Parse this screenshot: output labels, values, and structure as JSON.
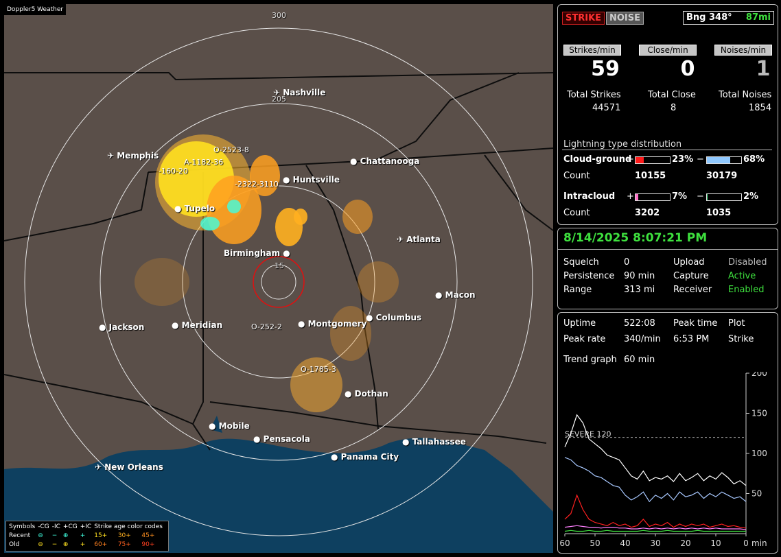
{
  "app": {
    "brand": "Doppler5 Weather"
  },
  "map": {
    "range_labels": [
      "300",
      "205",
      "15"
    ],
    "cities": [
      {
        "name": "Nashville",
        "icon": "airport"
      },
      {
        "name": "Memphis",
        "icon": "airport"
      },
      {
        "name": "Chattanooga",
        "icon": "dot"
      },
      {
        "name": "Huntsville",
        "icon": "dot"
      },
      {
        "name": "Tupelo",
        "icon": "dot"
      },
      {
        "name": "Atlanta",
        "icon": "airport"
      },
      {
        "name": "Birmingham",
        "icon": "dot"
      },
      {
        "name": "Macon",
        "icon": "dot"
      },
      {
        "name": "Jackson",
        "icon": "dot"
      },
      {
        "name": "Meridian",
        "icon": "dot"
      },
      {
        "name": "Montgomery",
        "icon": "dot"
      },
      {
        "name": "Columbus",
        "icon": "dot"
      },
      {
        "name": "Dothan",
        "icon": "dot"
      },
      {
        "name": "Mobile",
        "icon": "dot"
      },
      {
        "name": "Pensacola",
        "icon": "dot"
      },
      {
        "name": "Tallahassee",
        "icon": "dot"
      },
      {
        "name": "Panama City",
        "icon": "dot"
      },
      {
        "name": "New Orleans",
        "icon": "airport"
      }
    ],
    "cluster_labels": [
      "O-2523-8",
      "A-1182-36",
      "-160-20",
      "-2322-3110",
      "O-252-2",
      "O-1785-3"
    ],
    "legend": {
      "header": [
        "Symbols",
        "-CG",
        "-IC",
        "+CG",
        "+IC",
        "Strike age color codes"
      ],
      "rows": [
        {
          "label": "Recent",
          "ages": [
            "15+",
            "30+",
            "45+"
          ]
        },
        {
          "label": "Old",
          "ages": [
            "60+",
            "75+",
            "90+"
          ]
        }
      ]
    }
  },
  "status": {
    "strike_label": "STRIKE",
    "noise_label": "NOISE",
    "bearing": "Bng 348°",
    "distance": "87mi",
    "rates": [
      {
        "label": "Strikes/min",
        "value": "59",
        "total_label": "Total Strikes",
        "total": "44571"
      },
      {
        "label": "Close/min",
        "value": "0",
        "total_label": "Total Close",
        "total": "8"
      },
      {
        "label": "Noises/min",
        "value": "1",
        "total_label": "Total Noises",
        "total": "1854"
      }
    ],
    "distribution_title": "Lightning type distribution",
    "cg_label": "Cloud-ground",
    "ic_label": "Intracloud",
    "count_label": "Count",
    "cg_pos_pct": "23%",
    "cg_pos_fill": 0.23,
    "cg_neg_pct": "68%",
    "cg_neg_fill": 0.68,
    "cg_pos_count": "10155",
    "cg_neg_count": "30179",
    "ic_pos_pct": "7%",
    "ic_pos_fill": 0.07,
    "ic_neg_pct": "2%",
    "ic_neg_fill": 0.02,
    "ic_pos_count": "3202",
    "ic_neg_count": "1035"
  },
  "settings": {
    "datetime": "8/14/2025 8:07:21 PM",
    "rows": [
      [
        "Squelch",
        "0",
        "Upload",
        "Disabled"
      ],
      [
        "Persistence",
        "90 min",
        "Capture",
        "Active"
      ],
      [
        "Range",
        "313 mi",
        "Receiver",
        "Enabled"
      ]
    ]
  },
  "trend": {
    "uptime_label": "Uptime",
    "uptime": "522:08",
    "peak_time_label": "Peak time",
    "peak_time": "6:53 PM",
    "plot_label": "Plot",
    "plot": "Strike",
    "peak_rate_label": "Peak rate",
    "peak_rate": "340/min",
    "trend_label": "Trend graph",
    "trend_window": "60 min",
    "severe_label": "SEVERE 120"
  },
  "chart_data": {
    "type": "line",
    "title": "",
    "xlabel": "min",
    "ylabel": "",
    "x_ticks": [
      60,
      50,
      40,
      30,
      20,
      10,
      0
    ],
    "y_ticks": [
      50,
      100,
      150,
      200
    ],
    "xlim": [
      60,
      0
    ],
    "ylim": [
      0,
      200
    ],
    "severe_threshold": 120,
    "x": [
      60,
      58,
      56,
      54,
      52,
      50,
      48,
      46,
      44,
      42,
      40,
      38,
      36,
      34,
      32,
      30,
      28,
      26,
      24,
      22,
      20,
      18,
      16,
      14,
      12,
      10,
      8,
      6,
      4,
      2,
      0
    ],
    "series": [
      {
        "color": "#ffffff",
        "values": [
          108,
          125,
          148,
          138,
          118,
          112,
          106,
          98,
          95,
          92,
          82,
          72,
          68,
          78,
          66,
          70,
          68,
          72,
          65,
          75,
          66,
          70,
          75,
          66,
          72,
          68,
          76,
          70,
          62,
          66,
          60
        ]
      },
      {
        "color": "#a8c8ff",
        "values": [
          95,
          92,
          85,
          82,
          78,
          72,
          70,
          65,
          60,
          58,
          48,
          42,
          46,
          52,
          40,
          48,
          44,
          50,
          42,
          52,
          46,
          48,
          52,
          44,
          50,
          46,
          52,
          48,
          44,
          46,
          40
        ]
      },
      {
        "color": "#ff2020",
        "values": [
          18,
          25,
          48,
          30,
          18,
          14,
          12,
          10,
          14,
          10,
          12,
          8,
          10,
          18,
          9,
          12,
          10,
          14,
          8,
          12,
          9,
          12,
          10,
          12,
          8,
          10,
          12,
          9,
          10,
          8,
          7
        ]
      },
      {
        "color": "#ff80ff",
        "values": [
          8,
          9,
          10,
          9,
          8,
          8,
          7,
          8,
          8,
          7,
          7,
          6,
          6,
          7,
          6,
          7,
          6,
          7,
          6,
          7,
          6,
          7,
          6,
          7,
          6,
          7,
          6,
          6,
          6,
          6,
          5
        ]
      },
      {
        "color": "#40e040",
        "values": [
          3,
          4,
          3,
          3,
          4,
          3,
          3,
          4,
          3,
          3,
          3,
          3,
          3,
          4,
          3,
          3,
          3,
          4,
          3,
          3,
          3,
          3,
          4,
          3,
          3,
          3,
          3,
          3,
          3,
          3,
          3
        ]
      }
    ]
  }
}
